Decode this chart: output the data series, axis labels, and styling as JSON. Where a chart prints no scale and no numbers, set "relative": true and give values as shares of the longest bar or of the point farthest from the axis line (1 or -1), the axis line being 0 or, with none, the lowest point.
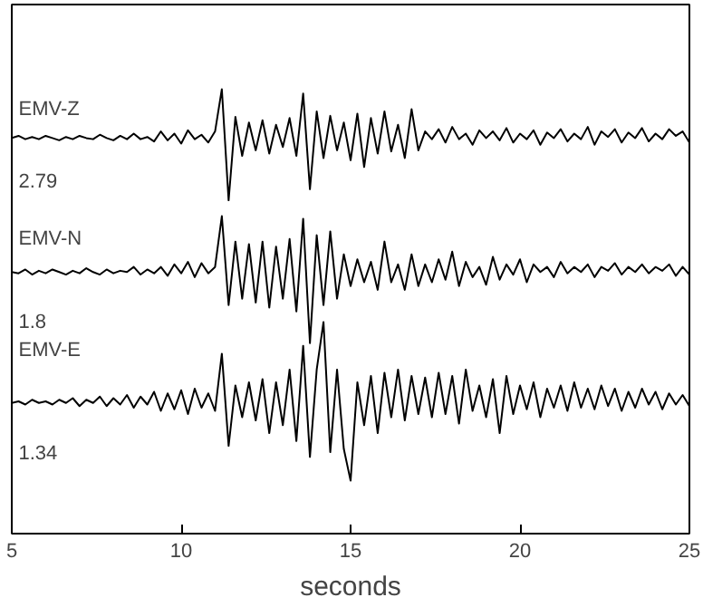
{
  "chart_data": [
    {
      "type": "line",
      "relative": true,
      "tick_labels": false,
      "xlim": [
        5,
        25
      ],
      "xticks": [
        5,
        10,
        15,
        20,
        25
      ],
      "annotations": [
        "2.79"
      ],
      "series": [
        {
          "name": "EMV-Z",
          "color": "#000000",
          "values": [
            0.56,
            0.58,
            0.55,
            0.57,
            0.55,
            0.58,
            0.56,
            0.54,
            0.57,
            0.55,
            0.58,
            0.56,
            0.55,
            0.59,
            0.56,
            0.54,
            0.58,
            0.55,
            0.6,
            0.55,
            0.57,
            0.53,
            0.62,
            0.54,
            0.6,
            0.51,
            0.63,
            0.55,
            0.59,
            0.52,
            0.62,
            1.0,
            0.0,
            0.75,
            0.4,
            0.7,
            0.45,
            0.72,
            0.42,
            0.68,
            0.48,
            0.74,
            0.4,
            0.96,
            0.1,
            0.8,
            0.38,
            0.76,
            0.45,
            0.7,
            0.36,
            0.78,
            0.3,
            0.74,
            0.42,
            0.8,
            0.44,
            0.68,
            0.38,
            0.82,
            0.45,
            0.62,
            0.55,
            0.64,
            0.52,
            0.66,
            0.55,
            0.6,
            0.5,
            0.63,
            0.56,
            0.62,
            0.54,
            0.65,
            0.52,
            0.6,
            0.55,
            0.63,
            0.5,
            0.61,
            0.56,
            0.64,
            0.53,
            0.6,
            0.55,
            0.66,
            0.5,
            0.62,
            0.57,
            0.64,
            0.52,
            0.61,
            0.56,
            0.65,
            0.53,
            0.6,
            0.55,
            0.64,
            0.58,
            0.62,
            0.52
          ]
        }
      ],
      "x": [
        5.0,
        5.2,
        5.4,
        5.6,
        5.8,
        6.0,
        6.2,
        6.4,
        6.6,
        6.8,
        7.0,
        7.2,
        7.4,
        7.6,
        7.8,
        8.0,
        8.2,
        8.4,
        8.6,
        8.8,
        9.0,
        9.2,
        9.4,
        9.6,
        9.8,
        10.0,
        10.2,
        10.4,
        10.6,
        10.8,
        11.0,
        11.2,
        11.4,
        11.6,
        11.8,
        12.0,
        12.2,
        12.4,
        12.6,
        12.8,
        13.0,
        13.2,
        13.4,
        13.6,
        13.8,
        14.0,
        14.2,
        14.4,
        14.6,
        14.8,
        15.0,
        15.2,
        15.4,
        15.6,
        15.8,
        16.0,
        16.2,
        16.4,
        16.6,
        16.8,
        17.0,
        17.2,
        17.4,
        17.6,
        17.8,
        18.0,
        18.2,
        18.4,
        18.6,
        18.8,
        19.0,
        19.2,
        19.4,
        19.6,
        19.8,
        20.0,
        20.2,
        20.4,
        20.6,
        20.8,
        21.0,
        21.2,
        21.4,
        21.6,
        21.8,
        22.0,
        22.2,
        22.4,
        22.6,
        22.8,
        23.0,
        23.2,
        23.4,
        23.6,
        23.8,
        24.0,
        24.2,
        24.4,
        24.6,
        24.8,
        25.0
      ]
    },
    {
      "type": "line",
      "relative": true,
      "tick_labels": false,
      "xlim": [
        5,
        25
      ],
      "xticks": [
        5,
        10,
        15,
        20,
        25
      ],
      "annotations": [
        "1.8"
      ],
      "series": [
        {
          "name": "EMV-N",
          "color": "#000000",
          "values": [
            0.56,
            0.55,
            0.58,
            0.54,
            0.57,
            0.55,
            0.58,
            0.56,
            0.54,
            0.57,
            0.55,
            0.59,
            0.56,
            0.54,
            0.58,
            0.55,
            0.57,
            0.56,
            0.6,
            0.54,
            0.58,
            0.55,
            0.6,
            0.53,
            0.62,
            0.55,
            0.64,
            0.52,
            0.63,
            0.55,
            0.6,
            1.0,
            0.3,
            0.8,
            0.35,
            0.78,
            0.32,
            0.8,
            0.28,
            0.76,
            0.35,
            0.82,
            0.25,
            0.98,
            0.0,
            0.85,
            0.3,
            0.88,
            0.35,
            0.7,
            0.45,
            0.66,
            0.48,
            0.64,
            0.42,
            0.8,
            0.48,
            0.62,
            0.42,
            0.7,
            0.45,
            0.62,
            0.48,
            0.66,
            0.5,
            0.72,
            0.45,
            0.64,
            0.52,
            0.6,
            0.46,
            0.68,
            0.5,
            0.62,
            0.54,
            0.66,
            0.48,
            0.62,
            0.56,
            0.6,
            0.52,
            0.64,
            0.55,
            0.6,
            0.56,
            0.62,
            0.52,
            0.6,
            0.57,
            0.63,
            0.54,
            0.6,
            0.56,
            0.62,
            0.55,
            0.6,
            0.57,
            0.62,
            0.53,
            0.6,
            0.54
          ]
        }
      ],
      "x": [
        5.0,
        5.2,
        5.4,
        5.6,
        5.8,
        6.0,
        6.2,
        6.4,
        6.6,
        6.8,
        7.0,
        7.2,
        7.4,
        7.6,
        7.8,
        8.0,
        8.2,
        8.4,
        8.6,
        8.8,
        9.0,
        9.2,
        9.4,
        9.6,
        9.8,
        10.0,
        10.2,
        10.4,
        10.6,
        10.8,
        11.0,
        11.2,
        11.4,
        11.6,
        11.8,
        12.0,
        12.2,
        12.4,
        12.6,
        12.8,
        13.0,
        13.2,
        13.4,
        13.6,
        13.8,
        14.0,
        14.2,
        14.4,
        14.6,
        14.8,
        15.0,
        15.2,
        15.4,
        15.6,
        15.8,
        16.0,
        16.2,
        16.4,
        16.6,
        16.8,
        17.0,
        17.2,
        17.4,
        17.6,
        17.8,
        18.0,
        18.2,
        18.4,
        18.6,
        18.8,
        19.0,
        19.2,
        19.4,
        19.6,
        19.8,
        20.0,
        20.2,
        20.4,
        20.6,
        20.8,
        21.0,
        21.2,
        21.4,
        21.6,
        21.8,
        22.0,
        22.2,
        22.4,
        22.6,
        22.8,
        23.0,
        23.2,
        23.4,
        23.6,
        23.8,
        24.0,
        24.2,
        24.4,
        24.6,
        24.8,
        25.0
      ]
    },
    {
      "type": "line",
      "relative": true,
      "tick_labels": "x",
      "xlabel": "seconds",
      "xlim": [
        5,
        25
      ],
      "xticks": [
        5,
        10,
        15,
        20,
        25
      ],
      "annotations": [
        "1.34"
      ],
      "series": [
        {
          "name": "EMV-E",
          "color": "#000000",
          "values": [
            0.49,
            0.5,
            0.48,
            0.51,
            0.49,
            0.5,
            0.48,
            0.51,
            0.49,
            0.52,
            0.47,
            0.51,
            0.49,
            0.53,
            0.47,
            0.52,
            0.48,
            0.54,
            0.46,
            0.53,
            0.48,
            0.56,
            0.44,
            0.55,
            0.45,
            0.57,
            0.42,
            0.58,
            0.46,
            0.55,
            0.44,
            0.8,
            0.22,
            0.6,
            0.4,
            0.62,
            0.38,
            0.64,
            0.3,
            0.62,
            0.35,
            0.7,
            0.25,
            0.85,
            0.15,
            0.7,
            1.0,
            0.18,
            0.7,
            0.2,
            0.0,
            0.62,
            0.35,
            0.66,
            0.3,
            0.68,
            0.4,
            0.7,
            0.38,
            0.66,
            0.42,
            0.65,
            0.4,
            0.68,
            0.42,
            0.66,
            0.36,
            0.7,
            0.44,
            0.6,
            0.4,
            0.64,
            0.3,
            0.66,
            0.42,
            0.6,
            0.45,
            0.62,
            0.4,
            0.58,
            0.46,
            0.6,
            0.44,
            0.62,
            0.46,
            0.58,
            0.45,
            0.6,
            0.47,
            0.58,
            0.44,
            0.56,
            0.46,
            0.58,
            0.48,
            0.56,
            0.45,
            0.55,
            0.48,
            0.54,
            0.47
          ]
        }
      ],
      "x": [
        5.0,
        5.2,
        5.4,
        5.6,
        5.8,
        6.0,
        6.2,
        6.4,
        6.6,
        6.8,
        7.0,
        7.2,
        7.4,
        7.6,
        7.8,
        8.0,
        8.2,
        8.4,
        8.6,
        8.8,
        9.0,
        9.2,
        9.4,
        9.6,
        9.8,
        10.0,
        10.2,
        10.4,
        10.6,
        10.8,
        11.0,
        11.2,
        11.4,
        11.6,
        11.8,
        12.0,
        12.2,
        12.4,
        12.6,
        12.8,
        13.0,
        13.2,
        13.4,
        13.6,
        13.8,
        14.0,
        14.2,
        14.4,
        14.6,
        14.8,
        15.0,
        15.2,
        15.4,
        15.6,
        15.8,
        16.0,
        16.2,
        16.4,
        16.6,
        16.8,
        17.0,
        17.2,
        17.4,
        17.6,
        17.8,
        18.0,
        18.2,
        18.4,
        18.6,
        18.8,
        19.0,
        19.2,
        19.4,
        19.6,
        19.8,
        20.0,
        20.2,
        20.4,
        20.6,
        20.8,
        21.0,
        21.2,
        21.4,
        21.6,
        21.8,
        22.0,
        22.2,
        22.4,
        22.6,
        22.8,
        23.0,
        23.2,
        23.4,
        23.6,
        23.8,
        24.0,
        24.2,
        24.4,
        24.6,
        24.8,
        25.0
      ]
    }
  ]
}
